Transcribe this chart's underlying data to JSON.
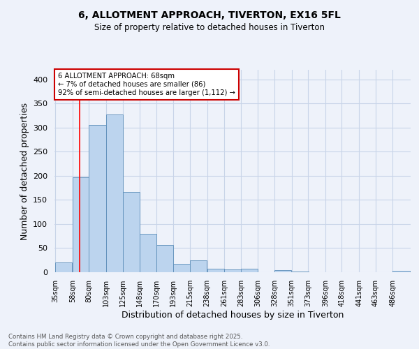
{
  "title": "6, ALLOTMENT APPROACH, TIVERTON, EX16 5FL",
  "subtitle": "Size of property relative to detached houses in Tiverton",
  "xlabel": "Distribution of detached houses by size in Tiverton",
  "ylabel": "Number of detached properties",
  "bar_color": "#bcd4ee",
  "bar_edge_color": "#5b8db8",
  "background_color": "#eef2fa",
  "grid_color": "#c8d4e8",
  "annotation_text": "6 ALLOTMENT APPROACH: 68sqm\n← 7% of detached houses are smaller (86)\n92% of semi-detached houses are larger (1,112) →",
  "annotation_box_color": "#ffffff",
  "annotation_box_edge": "#cc0000",
  "redline_x": 68,
  "footer": "Contains HM Land Registry data © Crown copyright and database right 2025.\nContains public sector information licensed under the Open Government Licence v3.0.",
  "bins": [
    35,
    58,
    80,
    103,
    125,
    148,
    170,
    193,
    215,
    238,
    261,
    283,
    306,
    328,
    351,
    373,
    396,
    418,
    441,
    463,
    486
  ],
  "values": [
    20,
    197,
    305,
    327,
    166,
    80,
    57,
    18,
    25,
    7,
    6,
    7,
    0,
    5,
    2,
    0,
    0,
    0,
    0,
    0,
    3
  ],
  "xlabels": [
    "35sqm",
    "58sqm",
    "80sqm",
    "103sqm",
    "125sqm",
    "148sqm",
    "170sqm",
    "193sqm",
    "215sqm",
    "238sqm",
    "261sqm",
    "283sqm",
    "306sqm",
    "328sqm",
    "351sqm",
    "373sqm",
    "396sqm",
    "418sqm",
    "441sqm",
    "463sqm",
    "486sqm"
  ],
  "ylim": [
    0,
    420
  ],
  "yticks": [
    0,
    50,
    100,
    150,
    200,
    250,
    300,
    350,
    400
  ]
}
